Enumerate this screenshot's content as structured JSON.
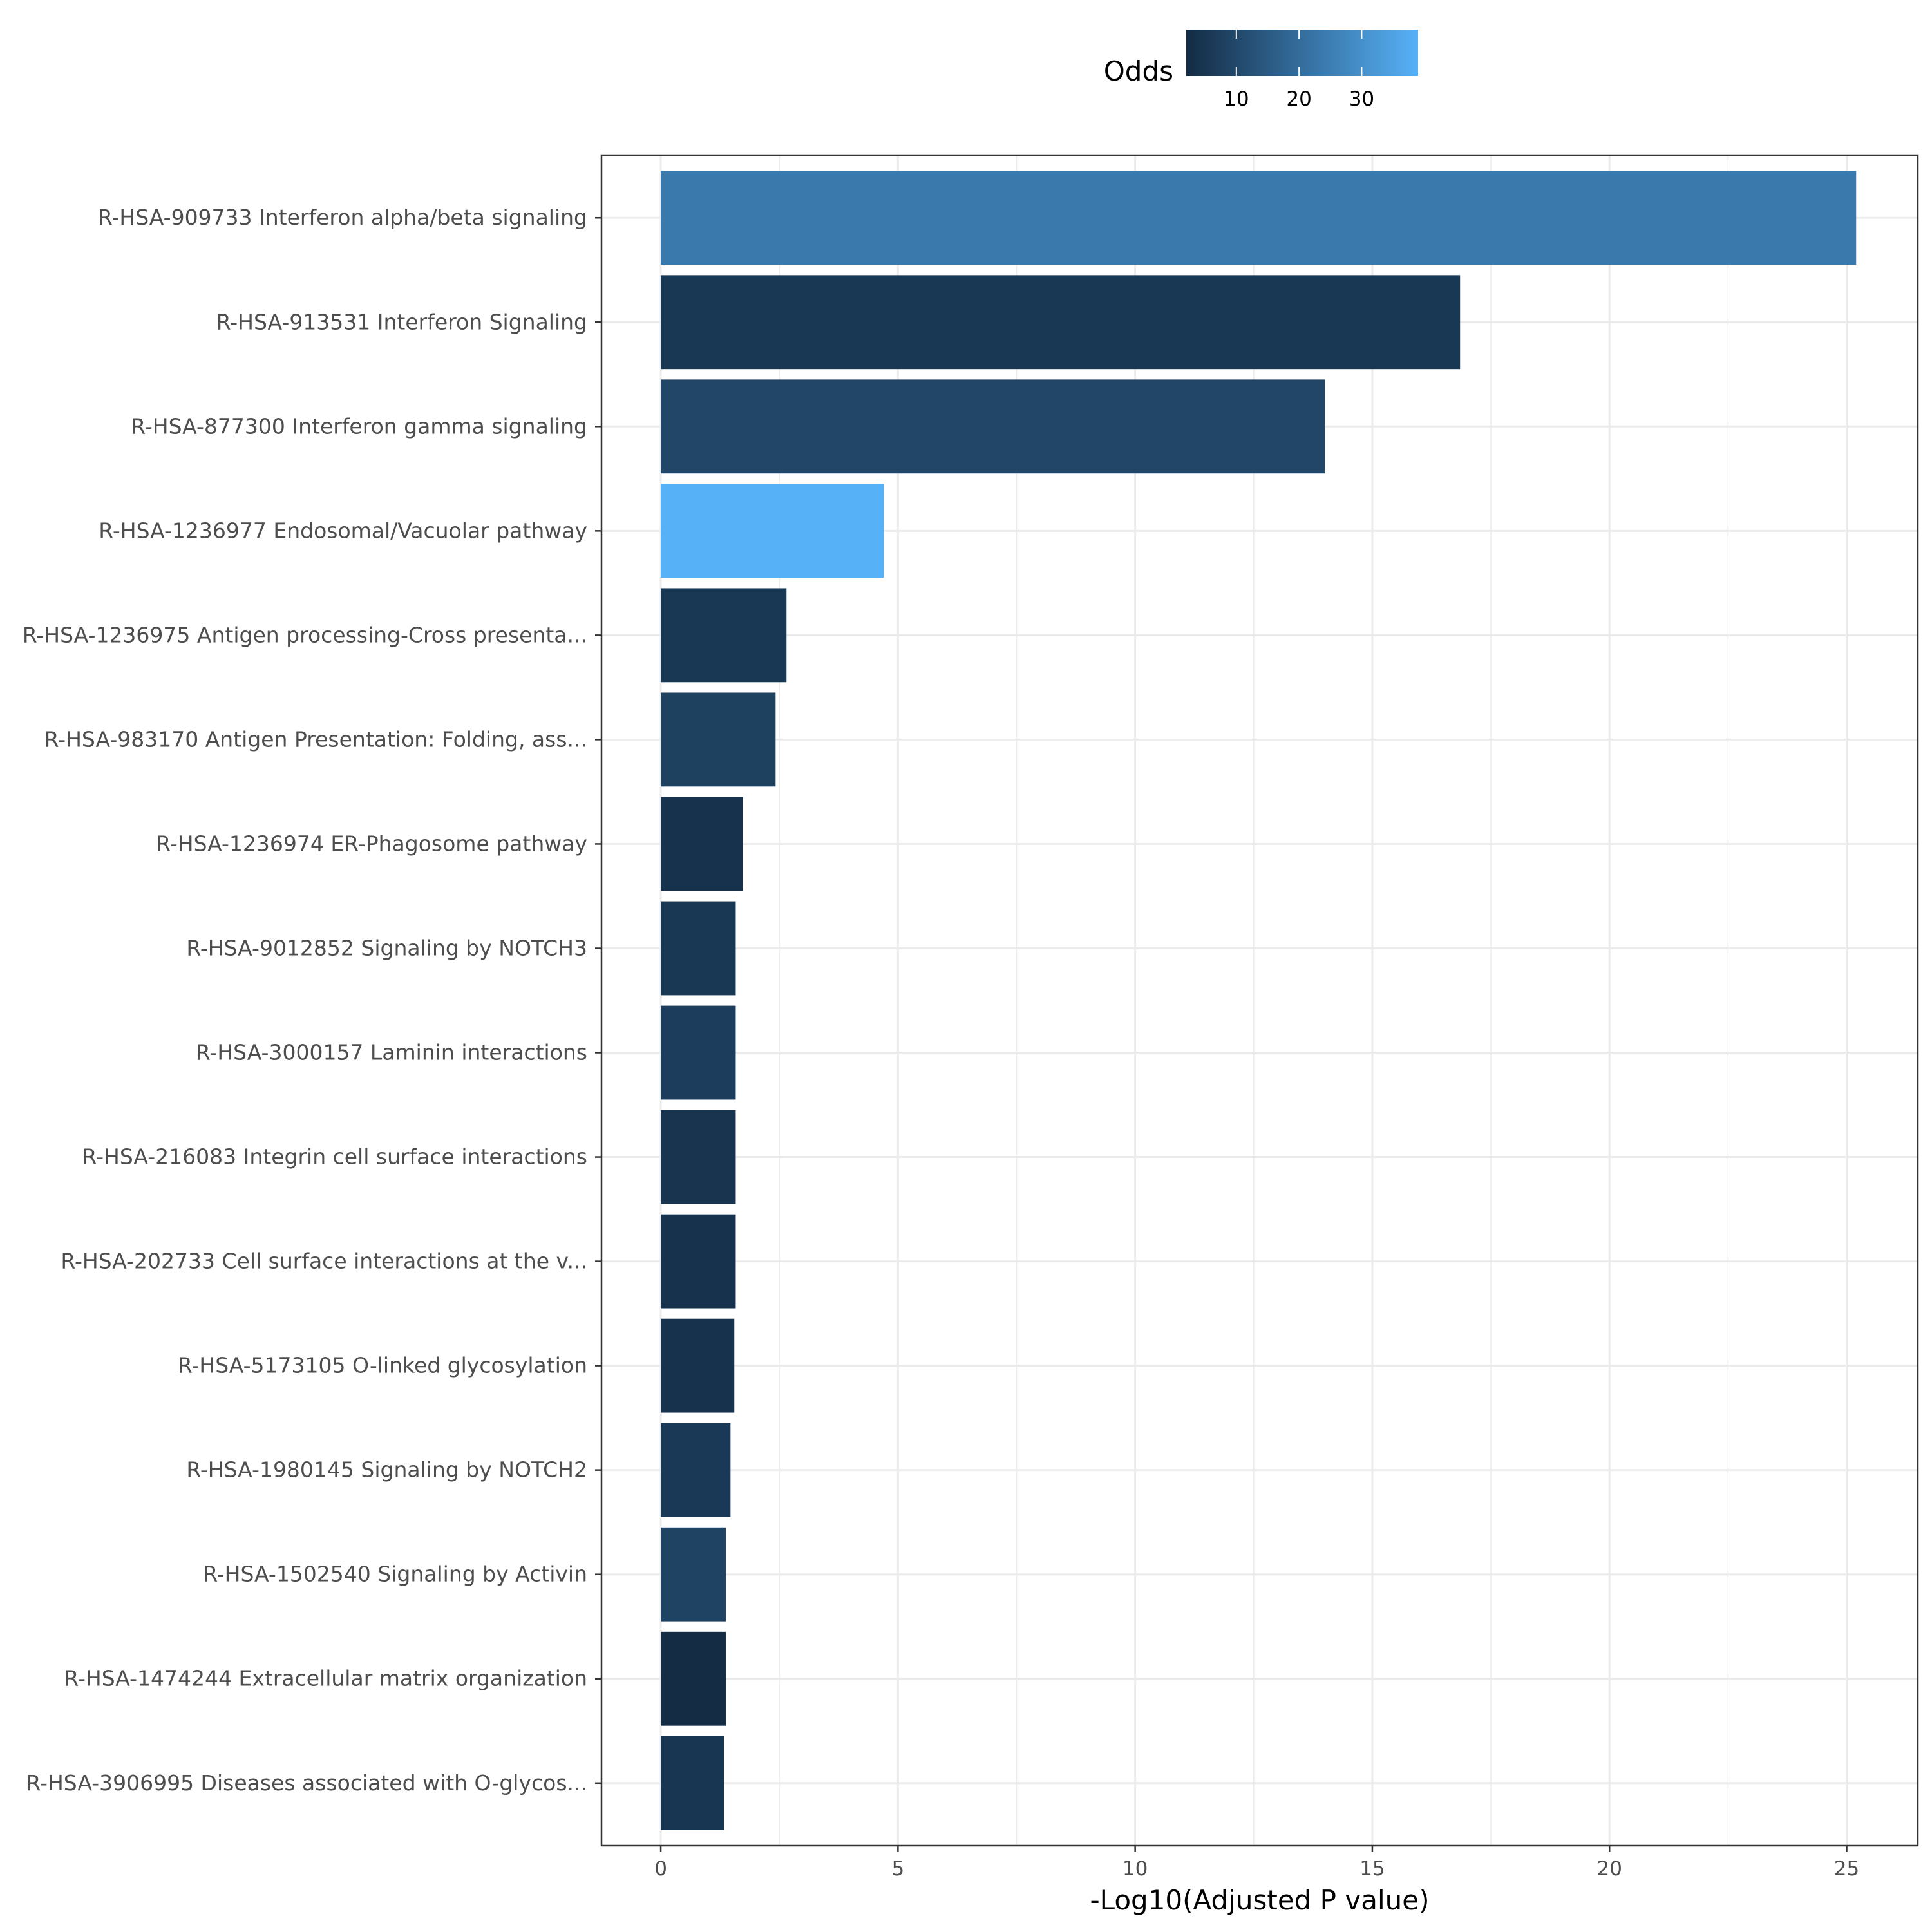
{
  "chart_data": {
    "type": "bar",
    "orientation": "horizontal",
    "title": "",
    "xlabel": "-Log10(Adjusted P value)",
    "ylabel": "",
    "xlim": [
      -1.25,
      26.5
    ],
    "xticks": [
      0,
      5,
      10,
      15,
      20,
      25
    ],
    "grid": true,
    "legend": {
      "title": "Odds",
      "placement": "top",
      "range": [
        2,
        39
      ],
      "ticks": [
        10,
        20,
        30
      ],
      "color_low": "#132B43",
      "color_high": "#56B1F7"
    },
    "categories": [
      "R-HSA-909733 Interferon alpha/beta signaling",
      "R-HSA-913531 Interferon Signaling",
      "R-HSA-877300 Interferon gamma signaling",
      "R-HSA-1236977 Endosomal/Vacuolar pathway",
      "R-HSA-1236975 Antigen processing-Cross presenta...",
      "R-HSA-983170 Antigen Presentation: Folding, ass...",
      "R-HSA-1236974 ER-Phagosome pathway",
      "R-HSA-9012852 Signaling by NOTCH3",
      "R-HSA-3000157 Laminin interactions",
      "R-HSA-216083 Integrin cell surface interactions",
      "R-HSA-202733 Cell surface interactions at the v...",
      "R-HSA-5173105 O-linked glycosylation",
      "R-HSA-1980145 Signaling by NOTCH2",
      "R-HSA-1502540 Signaling by Activin",
      "R-HSA-1474244 Extracellular matrix organization",
      "R-HSA-3906995 Diseases associated with O-glycos..."
    ],
    "values": [
      25.2,
      16.85,
      14.0,
      4.7,
      2.65,
      2.42,
      1.73,
      1.58,
      1.58,
      1.58,
      1.58,
      1.55,
      1.47,
      1.37,
      1.37,
      1.33
    ],
    "odds": [
      23.5,
      5.5,
      9.5,
      39.0,
      5.5,
      8.0,
      4.0,
      5.5,
      7.0,
      4.5,
      4.0,
      4.0,
      6.0,
      8.5,
      2.5,
      5.0
    ]
  }
}
